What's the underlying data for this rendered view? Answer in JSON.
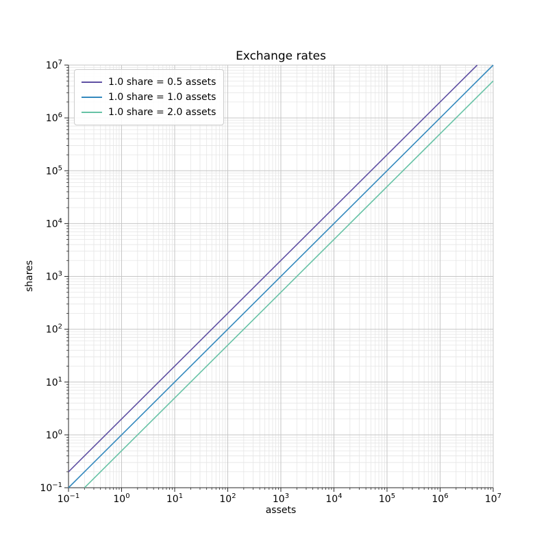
{
  "title": "Exchange rates",
  "chart_data": {
    "type": "line",
    "title": "Exchange rates",
    "xlabel": "assets",
    "ylabel": "shares",
    "xscale": "log",
    "yscale": "log",
    "xlim": [
      0.1,
      10000000
    ],
    "ylim": [
      0.1,
      10000000
    ],
    "x_tick_exponents": [
      -1,
      0,
      1,
      2,
      3,
      4,
      5,
      6,
      7
    ],
    "y_tick_exponents": [
      -1,
      0,
      1,
      2,
      3,
      4,
      5,
      6,
      7
    ],
    "grid": {
      "major": true,
      "minor": true,
      "major_color": "#c6c6c6",
      "minor_color": "#e5e5e5"
    },
    "axis_color": "#262626",
    "background": "#ffffff",
    "legend": {
      "position": "upper-left",
      "border_color": "#cccccc"
    },
    "series": [
      {
        "label": "1.0 share = 0.5 assets",
        "assets_per_share": 0.5,
        "color": "#5e4fa2"
      },
      {
        "label": "1.0 share = 1.0 assets",
        "assets_per_share": 1.0,
        "color": "#3288bd"
      },
      {
        "label": "1.0 share = 2.0 assets",
        "assets_per_share": 2.0,
        "color": "#66c2a5"
      }
    ]
  }
}
